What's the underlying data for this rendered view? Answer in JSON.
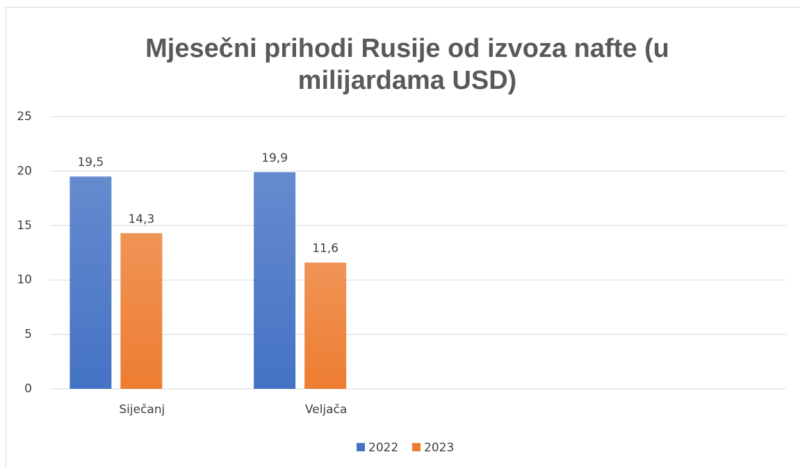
{
  "chart_data": {
    "type": "bar",
    "title": [
      "Mjesečni prihodi Rusije od izvoza nafte (u",
      "milijardama USD)"
    ],
    "categories": [
      "Siječanj",
      "Veljača",
      null,
      null
    ],
    "series": [
      {
        "name": "2022",
        "color": "#4472c4",
        "values": [
          19.5,
          19.9,
          null,
          null
        ],
        "value_labels": [
          "19,5",
          "19,9",
          null,
          null
        ]
      },
      {
        "name": "2023",
        "color": "#ed7d31",
        "values": [
          14.3,
          11.6,
          null,
          null
        ],
        "value_labels": [
          "14,3",
          "11,6",
          null,
          null
        ]
      }
    ],
    "ylim": [
      0,
      25
    ],
    "yticks": [
      0,
      5,
      10,
      15,
      20,
      25
    ],
    "grid": true,
    "legend": "bottom"
  }
}
